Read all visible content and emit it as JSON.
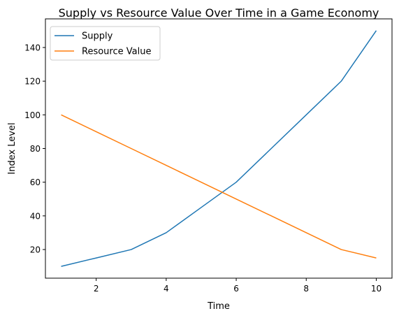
{
  "chart_data": {
    "type": "line",
    "title": "Supply vs Resource Value Over Time in a Game Economy",
    "xlabel": "Time",
    "ylabel": "Index Level",
    "x": [
      1,
      2,
      3,
      4,
      5,
      6,
      7,
      8,
      9,
      10
    ],
    "series": [
      {
        "name": "Supply",
        "color": "#1f77b4",
        "values": [
          10,
          15,
          20,
          30,
          45,
          60,
          80,
          100,
          120,
          150
        ]
      },
      {
        "name": "Resource Value",
        "color": "#ff7f0e",
        "values": [
          100,
          90,
          80,
          70,
          60,
          50,
          40,
          30,
          20,
          15
        ]
      }
    ],
    "xlim": [
      0.55,
      10.45
    ],
    "ylim": [
      3,
      157
    ],
    "xticks": [
      2,
      4,
      6,
      8,
      10
    ],
    "yticks": [
      20,
      40,
      60,
      80,
      100,
      120,
      140
    ],
    "grid": false,
    "legend_position": "upper-left"
  }
}
